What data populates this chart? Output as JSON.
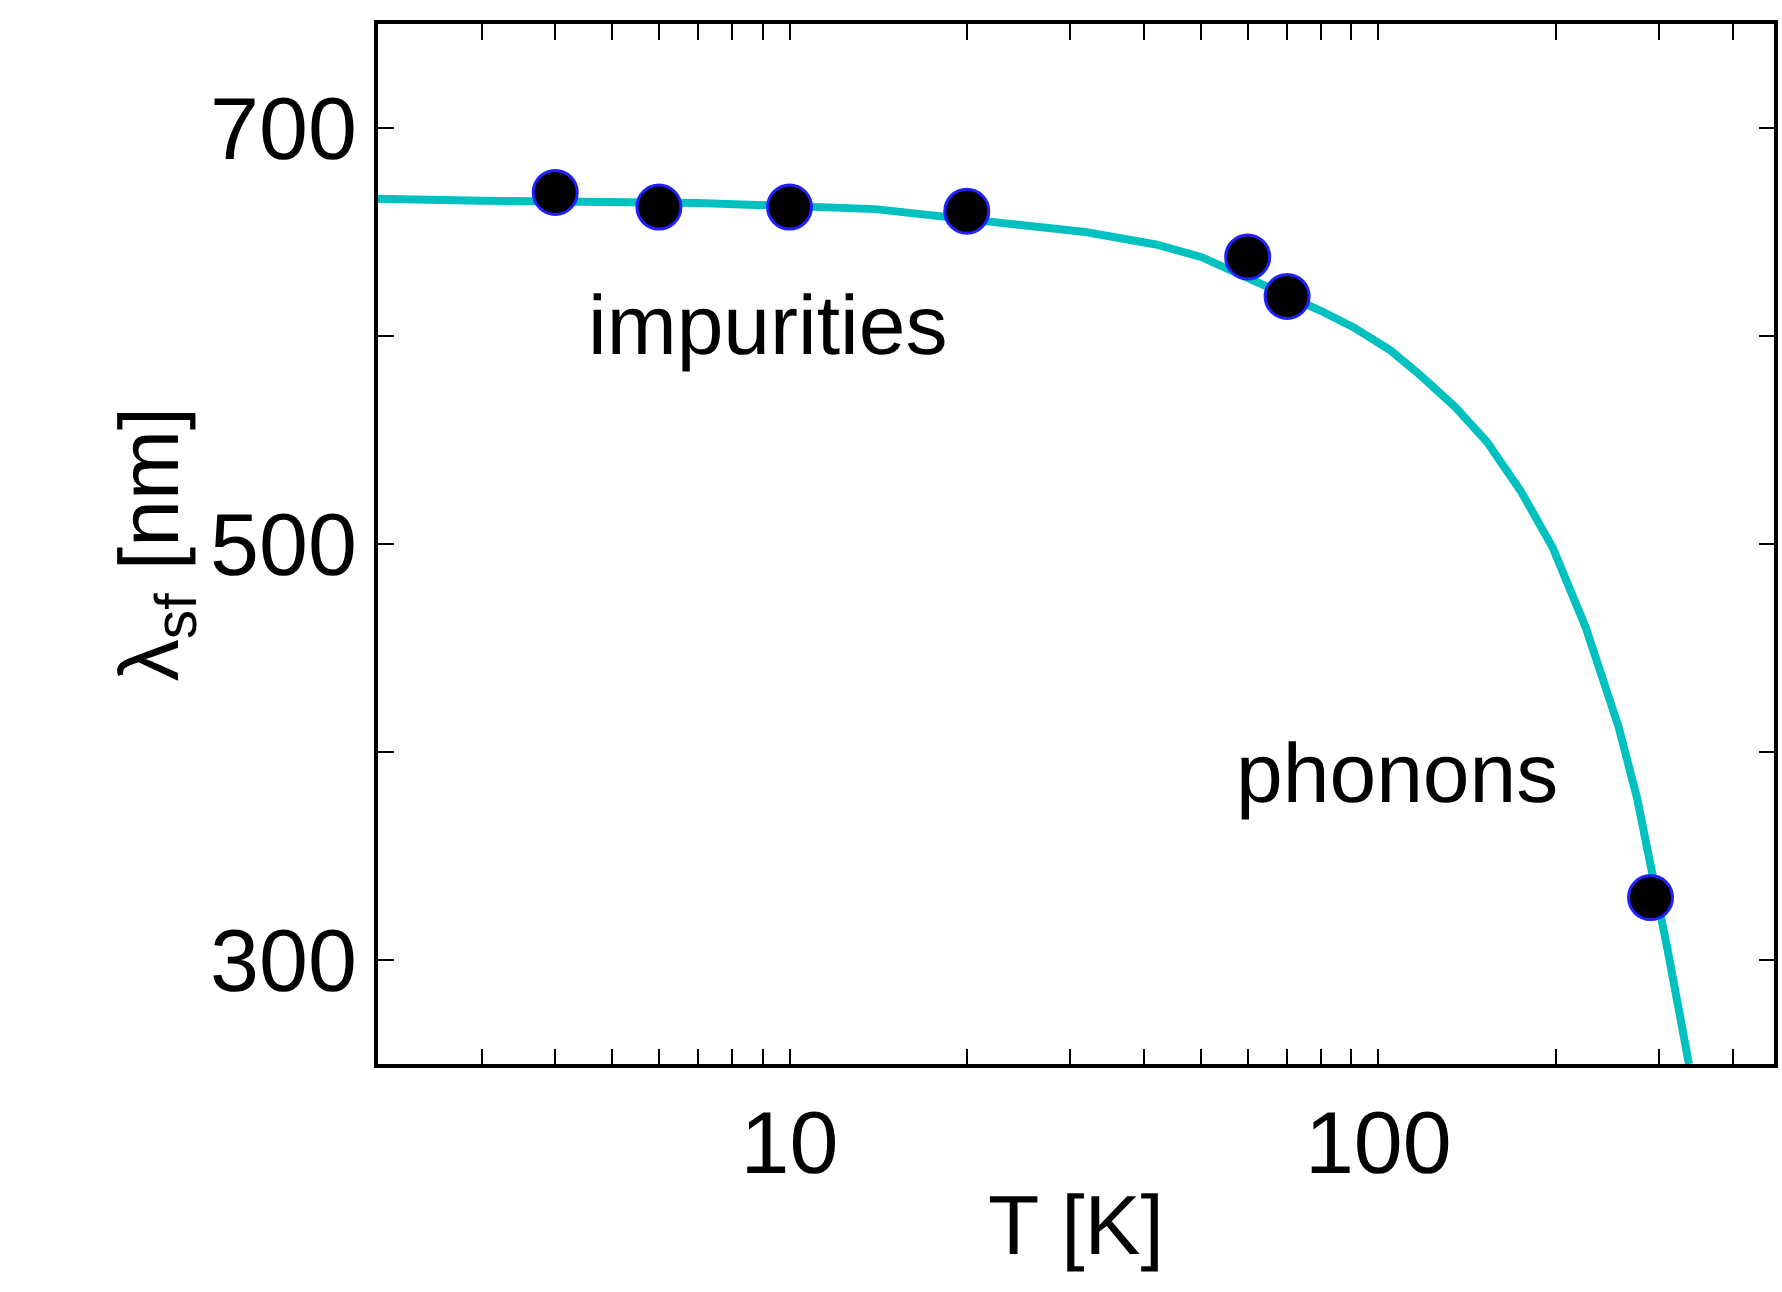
{
  "chart_data": {
    "type": "scatter",
    "xlabel": "T [K]",
    "ylabel": "λ$_{sf}$ [nm]",
    "log": "x",
    "xlim": [
      2,
      470
    ],
    "ylim": [
      250,
      750
    ],
    "xticks": [
      {
        "value": 2,
        "label": null
      },
      {
        "value": 3,
        "label": null
      },
      {
        "value": 4,
        "label": null
      },
      {
        "value": 5,
        "label": null
      },
      {
        "value": 6,
        "label": null
      },
      {
        "value": 7,
        "label": null
      },
      {
        "value": 8,
        "label": null
      },
      {
        "value": 9,
        "label": null
      },
      10,
      {
        "value": 20,
        "label": null
      },
      {
        "value": 30,
        "label": null
      },
      {
        "value": 40,
        "label": null
      },
      {
        "value": 50,
        "label": null
      },
      {
        "value": 60,
        "label": null
      },
      {
        "value": 70,
        "label": null
      },
      {
        "value": 80,
        "label": null
      },
      {
        "value": 90,
        "label": null
      },
      100,
      {
        "value": 200,
        "label": null
      },
      {
        "value": 300,
        "label": null
      },
      {
        "value": 400,
        "label": null
      }
    ],
    "yticks": [
      300,
      {
        "value": 400,
        "label": null
      },
      500,
      {
        "value": 600,
        "label": null
      },
      700
    ],
    "series": [
      {
        "type": "line",
        "color": "#00c0c0",
        "marker": "none",
        "line_style": "solid",
        "x": [
          2,
          3,
          7,
          14,
          31.8,
          41.9,
          50,
          80,
          91,
          105,
          118,
          135,
          153,
          175,
          198,
          225,
          256,
          275,
          310,
          337
        ],
        "values": [
          666,
          665,
          664,
          661,
          650,
          644,
          638,
          612,
          604,
          593,
          581,
          566,
          549,
          525,
          498,
          460,
          412,
          378,
          305,
          250
        ]
      },
      {
        "color": "#000000",
        "marker": "circle",
        "x": [
          4,
          6,
          10,
          20,
          60,
          70,
          290
        ],
        "values": [
          669,
          662,
          662,
          660,
          638,
          619,
          330
        ]
      }
    ],
    "annotations": [
      "impurities",
      "phonons"
    ]
  }
}
